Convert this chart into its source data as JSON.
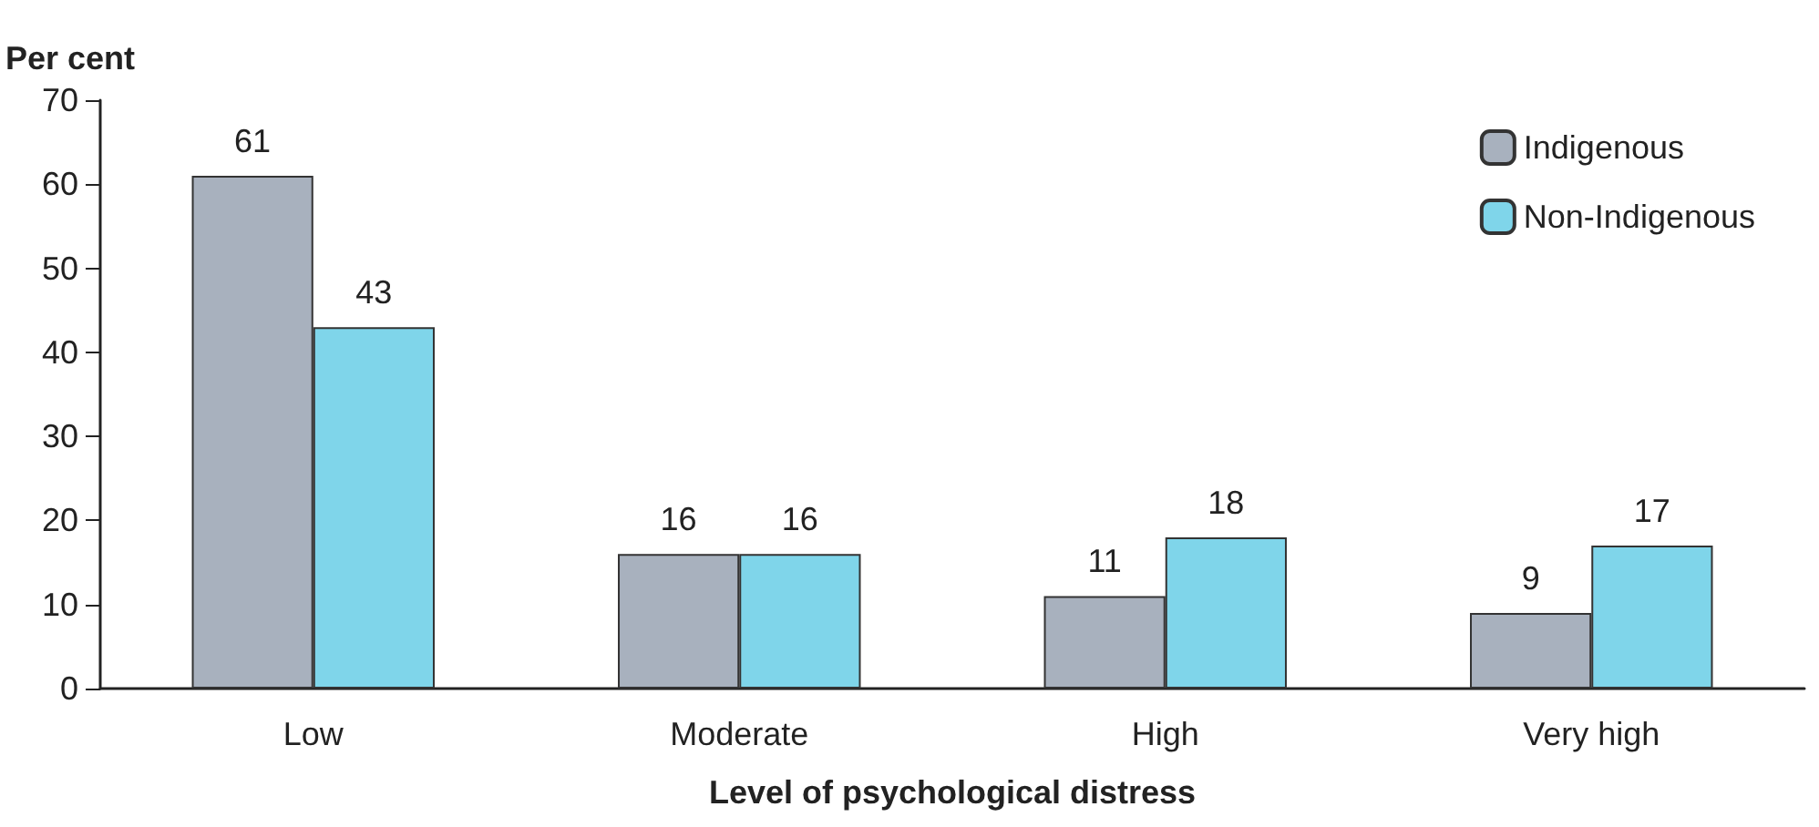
{
  "chart_data": {
    "type": "bar",
    "ylabel": "Per cent",
    "xlabel": "Level of psychological distress",
    "categories": [
      "Low",
      "Moderate",
      "High",
      "Very high"
    ],
    "series": [
      {
        "name": "Indigenous",
        "color": "#a8b1be",
        "values": [
          61,
          16,
          11,
          9
        ]
      },
      {
        "name": "Non-Indigenous",
        "color": "#7fd5ea",
        "values": [
          43,
          16,
          18,
          17
        ]
      }
    ],
    "ylim": [
      0,
      70
    ],
    "yticks": [
      0,
      10,
      20,
      30,
      40,
      50,
      60,
      70
    ],
    "grid": false,
    "legend": "top right",
    "data_labels": true
  }
}
